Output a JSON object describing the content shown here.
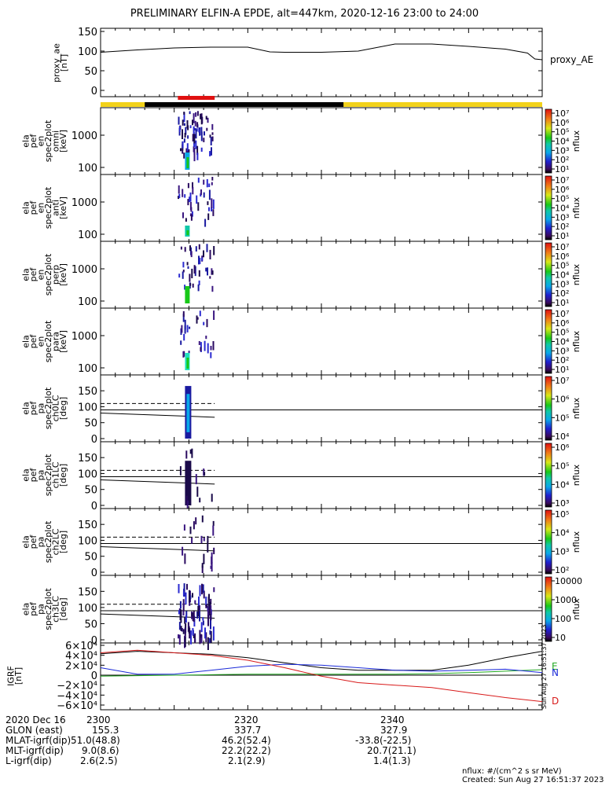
{
  "title": "PRELIMINARY ELFIN-A EPDE, alt=447km, 2020-12-16 23:00 to 24:00",
  "proxy_panel": {
    "ylabel": "proxy_ae\n[nT]",
    "yticks": [
      "150",
      "100",
      "50",
      "0"
    ],
    "legend": "proxy_AE"
  },
  "spectrogram_panels": [
    {
      "id": "omni",
      "ylabel": "ela\npef\nen\nspec2plot\nomni\n[keV]",
      "yticks": [
        "1000",
        "100"
      ],
      "cbar_ticks": [
        "10⁷",
        "10⁶",
        "10⁵",
        "10⁴",
        "10³",
        "10²",
        "10¹"
      ],
      "cbar_label": "nflux"
    },
    {
      "id": "anti",
      "ylabel": "ela\npef\nen\nspec2plot\nanti\n[keV]",
      "yticks": [
        "1000",
        "100"
      ],
      "cbar_ticks": [
        "10⁷",
        "10⁶",
        "10⁵",
        "10⁴",
        "10³",
        "10²",
        "10¹"
      ],
      "cbar_label": "nflux"
    },
    {
      "id": "perp",
      "ylabel": "ela\npef\nen\nspec2plot\nperp\n[keV]",
      "yticks": [
        "1000",
        "100"
      ],
      "cbar_ticks": [
        "10⁷",
        "10⁶",
        "10⁵",
        "10⁴",
        "10³",
        "10²",
        "10¹"
      ],
      "cbar_label": "nflux"
    },
    {
      "id": "para",
      "ylabel": "ela\npef\nen\nspec2plot\npara\n[keV]",
      "yticks": [
        "1000",
        "100"
      ],
      "cbar_ticks": [
        "10⁷",
        "10⁶",
        "10⁵",
        "10⁴",
        "10³",
        "10²",
        "10¹"
      ],
      "cbar_label": "nflux"
    },
    {
      "id": "ch0LC",
      "ylabel": "ela\npef\npa\nspec2plot\nch0LC\n[deg]",
      "yticks": [
        "150",
        "100",
        "50",
        "0"
      ],
      "cbar_ticks": [
        "10⁷",
        "10⁶",
        "10⁵",
        "10⁴"
      ],
      "cbar_label": "nflux"
    },
    {
      "id": "ch1LC",
      "ylabel": "ela\npef\npa\nspec2plot\nch1LC\n[deg]",
      "yticks": [
        "150",
        "100",
        "50",
        "0"
      ],
      "cbar_ticks": [
        "10⁶",
        "10⁵",
        "10⁴",
        "10³"
      ],
      "cbar_label": "nflux"
    },
    {
      "id": "ch2LC",
      "ylabel": "ela\npef\npa\nspec2plot\nch2LC\n[deg]",
      "yticks": [
        "150",
        "100",
        "50",
        "0"
      ],
      "cbar_ticks": [
        "10⁵",
        "10⁴",
        "10³",
        "10²"
      ],
      "cbar_label": "nflux"
    },
    {
      "id": "ch3LC",
      "ylabel": "ela\npef\npa\nspec2plot\nch3LC\n[deg]",
      "yticks": [
        "150",
        "100",
        "50",
        "0"
      ],
      "cbar_ticks": [
        "10000",
        "1000",
        "100",
        "10"
      ],
      "cbar_label": "nflux"
    }
  ],
  "igrf_panel": {
    "ylabel": "IGRF\n[nT]",
    "yticks": [
      "6×10⁴",
      "4×10⁴",
      "2×10⁴",
      "0",
      "−2×10⁴",
      "−4×10⁴",
      "−6×10⁴"
    ],
    "legend": [
      "E",
      "N",
      "D"
    ],
    "stamp": "Sun Aug 27 16:51:37 2023"
  },
  "colors": {
    "proxy_line": "#000000",
    "science_zone_bar": "#000000",
    "outside_bar": "#f2d21a",
    "highlight_bar": "#e01010",
    "igrf_E": "#22aa22",
    "igrf_N": "#1a2ad8",
    "igrf_D": "#d81a1a",
    "igrf_total": "#000000"
  },
  "footer": {
    "rows": [
      {
        "label": "2020 Dec 16",
        "v1": "2300",
        "v2": "2320",
        "v3": "2340"
      },
      {
        "label": "GLON (east)",
        "v1": "155.3",
        "v2": "337.7",
        "v3": "327.9"
      },
      {
        "label": "MLAT-igrf(dip)",
        "v1": "51.0(48.8)",
        "v2": "46.2(52.4)",
        "v3": "-33.8(-22.5)"
      },
      {
        "label": "MLT-igrf(dip)",
        "v1": "9.0(8.6)",
        "v2": "22.2(22.2)",
        "v3": "20.7(21.1)"
      },
      {
        "label": "L-igrf(dip)",
        "v1": "2.6(2.5)",
        "v2": "2.1(2.9)",
        "v3": "1.4(1.3)"
      }
    ],
    "units": "nflux: #/(cm^2 s sr MeV)",
    "created": "Created: Sun Aug 27 16:51:37 2023"
  },
  "chart_data": {
    "type": "multi-panel time series with spectrograms",
    "time_range": [
      "2020-12-16 23:00",
      "2020-12-16 24:00"
    ],
    "x_ticks": [
      "2300",
      "2320",
      "2340"
    ],
    "proxy_ae": {
      "ylim": [
        0,
        150
      ],
      "x_minutes": [
        0,
        5,
        10,
        15,
        20,
        23,
        25,
        30,
        35,
        40,
        45,
        50,
        55,
        58,
        59,
        60
      ],
      "values": [
        97,
        103,
        108,
        110,
        110,
        98,
        97,
        97,
        100,
        118,
        118,
        112,
        105,
        95,
        80,
        78
      ]
    },
    "science_zone_minutes": [
      6,
      33
    ],
    "highlight_minutes": [
      10.5,
      15.5
    ],
    "burst_minutes": [
      10.4,
      15.3
    ],
    "loss_cone_deg": {
      "start": 80,
      "end": 67
    },
    "antiloss_cone_deg": 110,
    "igrf": {
      "ylim": [
        -60000,
        60000
      ],
      "x_minutes": [
        0,
        5,
        10,
        15,
        20,
        25,
        30,
        35,
        40,
        45,
        50,
        55,
        60
      ],
      "total": [
        43000,
        48000,
        45000,
        42000,
        35000,
        25000,
        15000,
        10000,
        10000,
        10000,
        20000,
        35000,
        48000
      ],
      "E": [
        -2000,
        -1000,
        0,
        1000,
        2000,
        2000,
        2000,
        2000,
        2000,
        3000,
        5000,
        8000,
        11000
      ],
      "N": [
        15000,
        2000,
        2000,
        10000,
        18000,
        22000,
        20000,
        15000,
        10000,
        8000,
        10000,
        12000,
        5000
      ],
      "D": [
        45000,
        50000,
        45000,
        40000,
        30000,
        15000,
        -2000,
        -15000,
        -20000,
        -25000,
        -35000,
        -45000,
        -53000
      ]
    }
  }
}
